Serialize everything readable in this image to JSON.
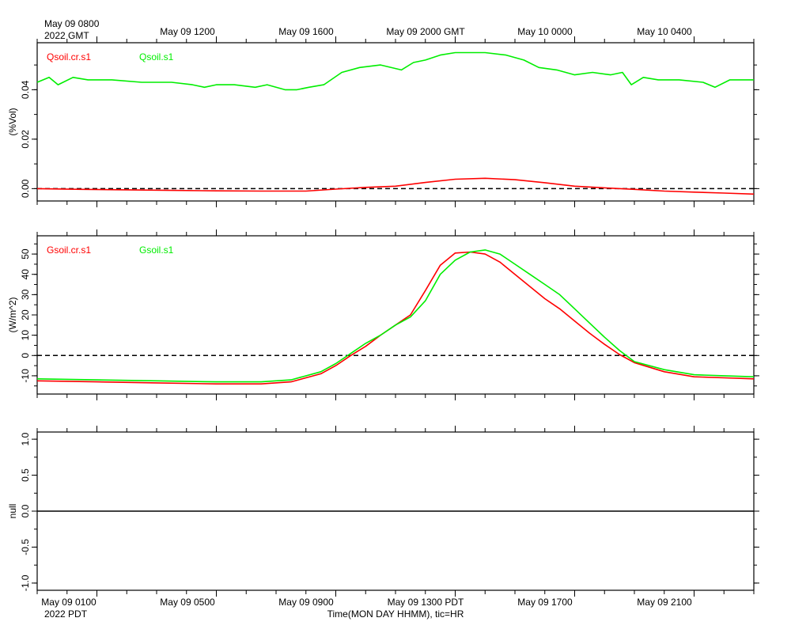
{
  "top_axis": {
    "line1": [
      "May 09 0800",
      "",
      "",
      "",
      "",
      ""
    ],
    "labels": [
      "2022 GMT",
      "May 09 1200",
      "May 09 1600",
      "May 09 2000 GMT",
      "May 10 0000",
      "May 10 0400"
    ]
  },
  "bottom_axis": {
    "labels": [
      "May 09 0100",
      "May 09 0500",
      "May 09 0900",
      "May 09 1300 PDT",
      "May 09 1700",
      "May 09 2100"
    ],
    "year_label": "2022 PDT",
    "title": "Time(MON DAY HHMM), tic=HR"
  },
  "colors": {
    "red": "#ff0000",
    "green": "#00ee00"
  },
  "chart_data": [
    {
      "type": "line",
      "ylabel": "(%Vol)",
      "ylim": [
        -0.005,
        0.059
      ],
      "yticks": [
        0.0,
        0.02,
        0.04
      ],
      "ytick_labels": [
        "0.00",
        "0.02",
        "0.04"
      ],
      "xlim": [
        -1.0,
        23.0
      ],
      "x_unit": "hours since May 09 0000 PDT",
      "zero_line": "dashed",
      "series": [
        {
          "name": "Qsoil.cr.s1",
          "color": "#ff0000",
          "x": [
            -1.0,
            0.5,
            2.0,
            3.5,
            5.0,
            6.5,
            8.0,
            9.0,
            10.0,
            11.0,
            12.0,
            13.0,
            14.0,
            15.0,
            16.0,
            17.0,
            18.0,
            19.0,
            20.0,
            21.0,
            22.0,
            23.0
          ],
          "values": [
            0.0,
            -0.0003,
            -0.0005,
            -0.0007,
            -0.0009,
            -0.001,
            -0.001,
            -0.0002,
            0.0005,
            0.001,
            0.0025,
            0.0038,
            0.0042,
            0.0036,
            0.0024,
            0.001,
            0.0003,
            -0.0003,
            -0.001,
            -0.0014,
            -0.0018,
            -0.0022
          ]
        },
        {
          "name": "Qsoil.s1",
          "color": "#00ee00",
          "x": [
            -1.0,
            -0.6,
            -0.3,
            0.2,
            0.7,
            1.5,
            2.5,
            3.5,
            4.2,
            4.6,
            5.0,
            5.6,
            6.3,
            6.7,
            7.3,
            7.7,
            8.1,
            8.6,
            9.2,
            9.8,
            10.5,
            11.2,
            11.6,
            12.0,
            12.5,
            13.0,
            13.5,
            14.0,
            14.7,
            15.3,
            15.8,
            16.4,
            17.0,
            17.6,
            18.2,
            18.6,
            18.9,
            19.3,
            19.8,
            20.5,
            21.3,
            21.7,
            22.2,
            23.0
          ],
          "values": [
            0.043,
            0.045,
            0.042,
            0.045,
            0.044,
            0.044,
            0.043,
            0.043,
            0.042,
            0.041,
            0.042,
            0.042,
            0.041,
            0.042,
            0.04,
            0.04,
            0.041,
            0.042,
            0.047,
            0.049,
            0.05,
            0.048,
            0.051,
            0.052,
            0.054,
            0.055,
            0.055,
            0.055,
            0.054,
            0.052,
            0.049,
            0.048,
            0.046,
            0.047,
            0.046,
            0.047,
            0.042,
            0.045,
            0.044,
            0.044,
            0.043,
            0.041,
            0.044,
            0.044
          ]
        }
      ]
    },
    {
      "type": "line",
      "ylabel": "(W/m^2)",
      "ylim": [
        -19.0,
        59.0
      ],
      "yticks": [
        -10,
        0,
        10,
        20,
        30,
        40,
        50
      ],
      "ytick_labels": [
        "-10",
        "0",
        "10",
        "20",
        "30",
        "40",
        "50"
      ],
      "xlim": [
        -1.0,
        23.0
      ],
      "x_unit": "hours since May 09 0000 PDT",
      "zero_line": "dashed",
      "series": [
        {
          "name": "Gsoil.cr.s1",
          "color": "#ff0000",
          "x": [
            -1.0,
            1.0,
            3.0,
            5.0,
            6.5,
            7.5,
            8.5,
            9.0,
            9.5,
            10.0,
            10.5,
            11.0,
            11.5,
            12.0,
            12.5,
            13.0,
            13.5,
            14.0,
            14.5,
            15.0,
            15.5,
            16.0,
            16.5,
            17.0,
            17.5,
            18.0,
            18.5,
            19.0,
            20.0,
            21.0,
            22.0,
            23.0
          ],
          "values": [
            -12.5,
            -13.0,
            -13.5,
            -14.0,
            -14.0,
            -13.0,
            -9.0,
            -5.0,
            0.0,
            4.5,
            10.0,
            15.0,
            20.0,
            32.0,
            44.5,
            50.5,
            51.0,
            50.0,
            46.0,
            40.0,
            34.0,
            28.0,
            23.0,
            17.0,
            11.0,
            5.5,
            0.5,
            -3.5,
            -8.0,
            -10.5,
            -11.0,
            -11.5
          ]
        },
        {
          "name": "Gsoil.s1",
          "color": "#00ee00",
          "x": [
            -1.0,
            1.0,
            3.0,
            5.0,
            6.5,
            7.5,
            8.5,
            9.0,
            9.5,
            10.0,
            10.5,
            11.0,
            11.5,
            12.0,
            12.5,
            13.0,
            13.5,
            14.0,
            14.5,
            15.0,
            15.5,
            16.0,
            16.5,
            17.0,
            17.5,
            18.0,
            18.5,
            19.0,
            20.0,
            21.0,
            22.0,
            23.0
          ],
          "values": [
            -11.5,
            -12.0,
            -12.5,
            -13.0,
            -13.0,
            -12.0,
            -8.0,
            -4.0,
            1.0,
            6.0,
            10.0,
            15.0,
            19.0,
            27.0,
            40.0,
            47.0,
            51.0,
            52.0,
            50.0,
            45.0,
            40.0,
            35.0,
            30.0,
            23.0,
            16.0,
            9.0,
            2.5,
            -3.0,
            -7.0,
            -9.5,
            -10.0,
            -10.5
          ]
        }
      ]
    },
    {
      "type": "line",
      "ylabel": "null",
      "ylim": [
        -1.1,
        1.1
      ],
      "yticks": [
        -1.0,
        -0.5,
        0.0,
        0.5,
        1.0
      ],
      "ytick_labels": [
        "-1.0",
        "-0.5",
        "0.0",
        "0.5",
        "1.0"
      ],
      "xlim": [
        -1.0,
        23.0
      ],
      "x_unit": "hours since May 09 0000 PDT",
      "zero_line": "solid",
      "series": []
    }
  ]
}
